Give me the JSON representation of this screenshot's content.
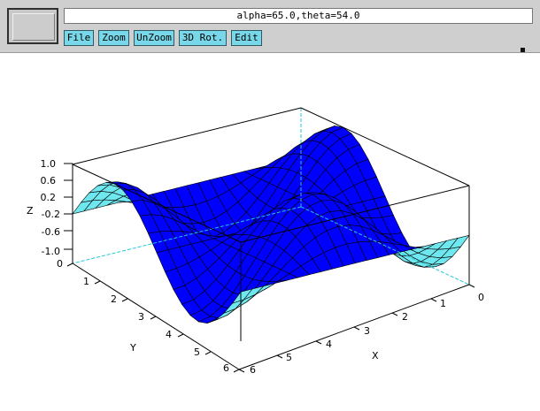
{
  "window": {
    "status_text": "alpha=65.0,theta=54.0"
  },
  "menu": [
    {
      "name": "file-button",
      "label": "File"
    },
    {
      "name": "zoom-button",
      "label": "Zoom"
    },
    {
      "name": "unzoom-button",
      "label": "UnZoom"
    },
    {
      "name": "3d-rotation-button",
      "label": "3D Rot."
    },
    {
      "name": "edit-button",
      "label": "Edit"
    }
  ],
  "colors": {
    "surface_top": "#0000ff",
    "surface_under": "#6fe7ee",
    "button_bg": "#78d7e8"
  },
  "axes": {
    "z_title": "Z",
    "y_title": "Y",
    "x_title": "X",
    "z_ticks": [
      "1.0",
      "0.6",
      "0.2",
      "-0.2",
      "-0.6",
      "-1.0"
    ],
    "y_ticks": [
      "0",
      "1",
      "2",
      "3",
      "4",
      "5",
      "6"
    ],
    "x_ticks": [
      "0",
      "1",
      "2",
      "3",
      "4",
      "5",
      "6"
    ]
  },
  "chart_data": {
    "type": "surface",
    "function": "z = sin(x)*cos(y)",
    "x_range": [
      0,
      6.28
    ],
    "y_range": [
      0,
      6.28
    ],
    "z_range": [
      -1.0,
      1.0
    ],
    "grid": [
      20,
      20
    ],
    "view": {
      "alpha": 65.0,
      "theta": 54.0
    }
  }
}
